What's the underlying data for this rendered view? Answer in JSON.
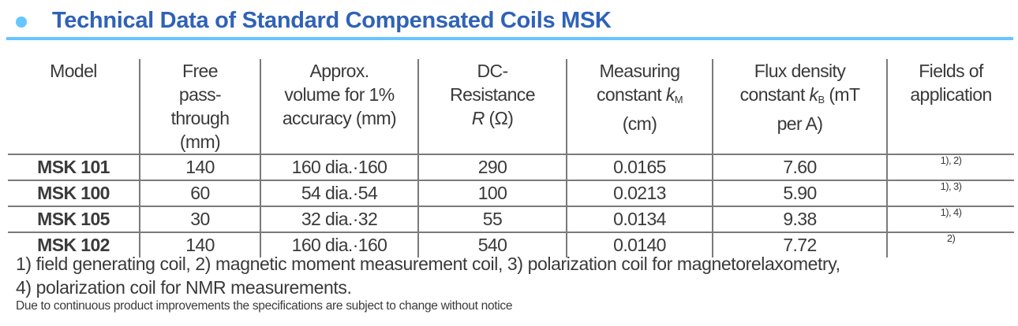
{
  "title": "Technical Data of Standard Compensated Coils MSK",
  "headers": {
    "model": "Model",
    "free_pass": [
      "Free",
      "pass-",
      "through",
      "(mm)"
    ],
    "volume": [
      "Approx.",
      "volume for 1%",
      "accuracy (mm)"
    ],
    "resistance": [
      "DC-",
      "Resistance",
      "R",
      " (Ω)"
    ],
    "measuring": [
      "Measuring",
      "constant ",
      "k",
      "M",
      "(cm)"
    ],
    "flux": [
      "Flux density",
      "constant ",
      "k",
      "B",
      " (mT",
      "per A)"
    ],
    "fields": [
      "Fields of",
      "application"
    ]
  },
  "rows": [
    {
      "model": "MSK 101",
      "free": "140",
      "volume": "160 dia.·160",
      "resistance": "290",
      "km": "0.0165",
      "kb": "7.60",
      "fields": "1), 2)"
    },
    {
      "model": "MSK 100",
      "free": "60",
      "volume": "54 dia.·54",
      "resistance": "100",
      "km": "0.0213",
      "kb": "5.90",
      "fields": "1), 3)"
    },
    {
      "model": "MSK 105",
      "free": "30",
      "volume": "32 dia.·32",
      "resistance": "55",
      "km": "0.0134",
      "kb": "9.38",
      "fields": "1), 4)"
    },
    {
      "model": "MSK 102",
      "free": "140",
      "volume": "160 dia.·160",
      "resistance": "540",
      "km": "0.0140",
      "kb": "7.72",
      "fields": "2)"
    }
  ],
  "footnotes": [
    "1) field generating coil, 2) magnetic moment measurement coil, 3) polarization coil for magnetorelaxometry,",
    "4) polarization coil for NMR measurements."
  ],
  "disclaimer": "Due to continuous product improvements the specifications are subject to change without notice",
  "colors": {
    "title": "#2f62b8",
    "accent": "#66c6ff",
    "text": "#3a3a3a"
  }
}
